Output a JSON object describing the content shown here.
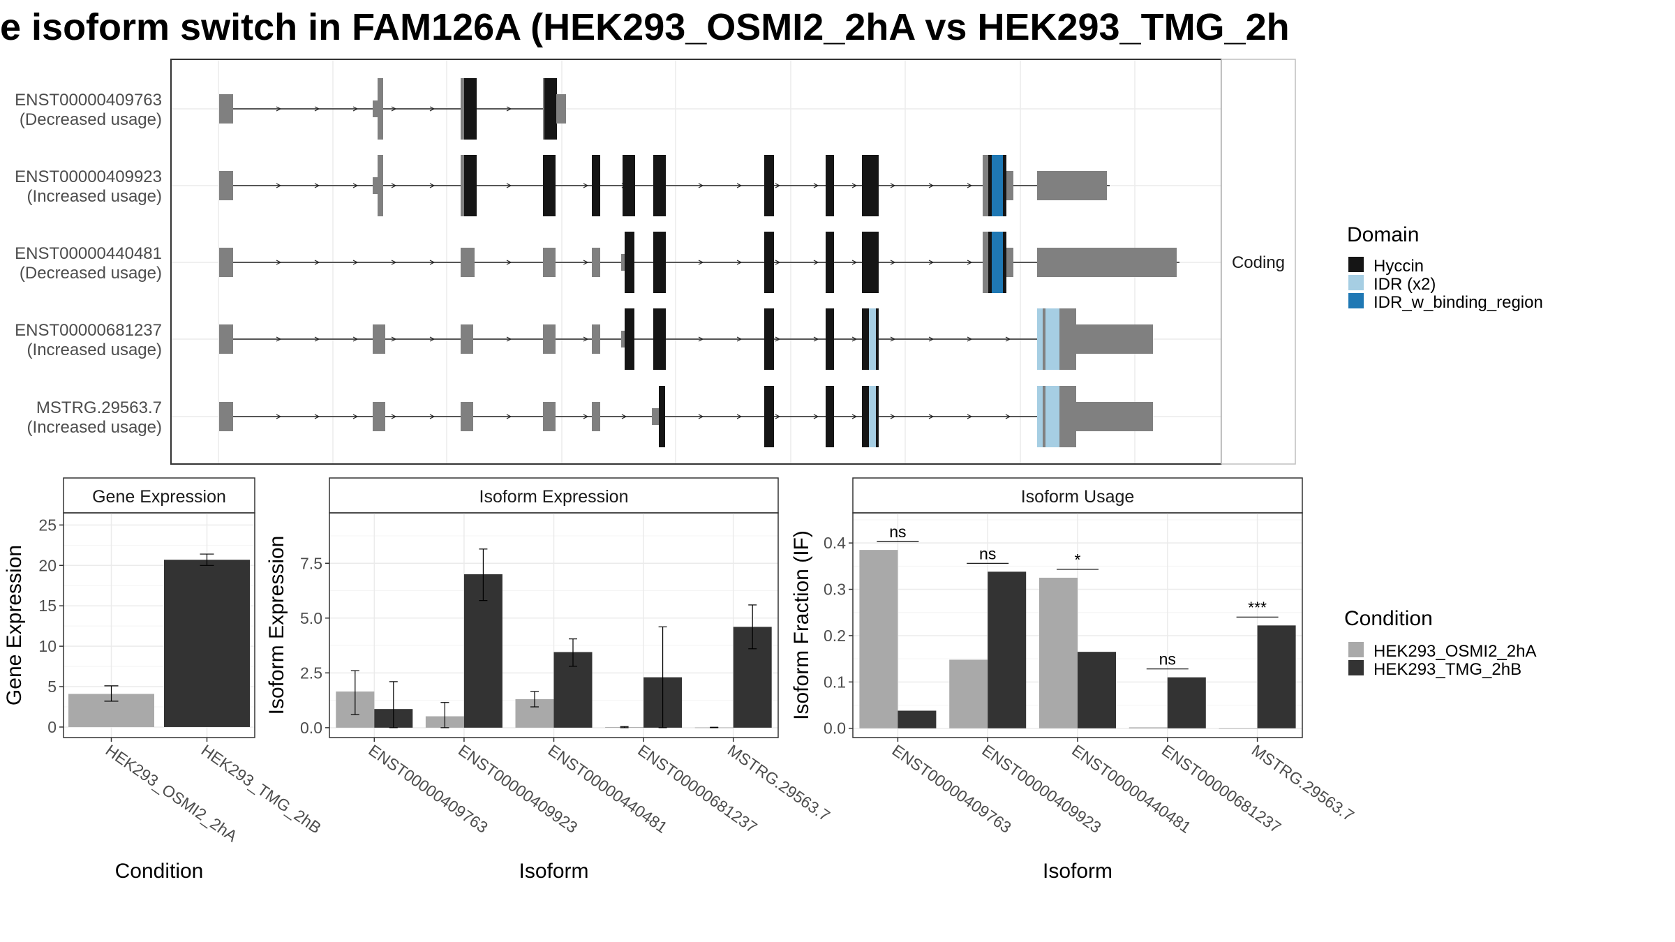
{
  "title": "e isoform switch in FAM126A (HEK293_OSMI2_2hA vs HEK293_TMG_2h",
  "colors": {
    "domain_hyccin": "#151515",
    "domain_idr": "#a6cee3",
    "domain_idr_binding": "#1f78b4",
    "utr_exon": "#808080",
    "cond_osmi": "#a9a9a9",
    "cond_tmg": "#333333"
  },
  "structure": {
    "facet_label": "Coding",
    "isoforms": [
      {
        "id": "ENST00000409763",
        "usage": "(Decreased usage)"
      },
      {
        "id": "ENST00000409923",
        "usage": "(Increased usage)"
      },
      {
        "id": "ENST00000440481",
        "usage": "(Decreased usage)"
      },
      {
        "id": "ENST00000681237",
        "usage": "(Increased usage)"
      },
      {
        "id": "MSTRG.29563.7",
        "usage": "(Increased usage)"
      }
    ],
    "legend": {
      "title": "Domain",
      "items": [
        "Hyccin",
        "IDR (x2)",
        "IDR_w_binding_region"
      ]
    }
  },
  "chart_data": [
    {
      "type": "bar",
      "facet_title": "Gene Expression",
      "xlabel": "Condition",
      "ylabel": "Gene Expression",
      "categories": [
        "HEK293_OSMI2_2hA",
        "HEK293_TMG_2hB"
      ],
      "values": [
        4.1,
        20.7
      ],
      "errors": [
        [
          3.2,
          5.1
        ],
        [
          20.0,
          21.4
        ]
      ],
      "ylim": [
        -1.3,
        26.5
      ],
      "yticks": [
        0,
        5,
        10,
        15,
        20,
        25
      ],
      "ytick_labels": [
        "0",
        "5",
        "10",
        "15",
        "20",
        "25"
      ]
    },
    {
      "type": "bar",
      "facet_title": "Isoform Expression",
      "xlabel": "Isoform",
      "ylabel": "Isoform Expression",
      "categories": [
        "ENST00000409763",
        "ENST00000409923",
        "ENST00000440481",
        "ENST00000681237",
        "MSTRG.29563.7"
      ],
      "series": [
        {
          "name": "HEK293_OSMI2_2hA",
          "values": [
            1.65,
            0.52,
            1.3,
            0.03,
            0.01
          ],
          "errors": [
            [
              0.6,
              2.6
            ],
            [
              0.0,
              1.15
            ],
            [
              0.95,
              1.65
            ],
            [
              0.0,
              0.05
            ],
            [
              0.0,
              0.02
            ]
          ]
        },
        {
          "name": "HEK293_TMG_2hB",
          "values": [
            0.85,
            7.0,
            3.45,
            2.3,
            4.6
          ],
          "errors": [
            [
              0.0,
              2.1
            ],
            [
              5.8,
              8.15
            ],
            [
              2.8,
              4.05
            ],
            [
              0.0,
              4.6
            ],
            [
              3.6,
              5.6
            ]
          ]
        }
      ],
      "ylim": [
        -0.45,
        9.8
      ],
      "yticks": [
        0,
        2.5,
        5,
        7.5
      ],
      "ytick_labels": [
        "0.0",
        "2.5",
        "5.0",
        "7.5"
      ]
    },
    {
      "type": "bar",
      "facet_title": "Isoform Usage",
      "xlabel": "Isoform",
      "ylabel": "Isoform Fraction (IF)",
      "categories": [
        "ENST00000409763",
        "ENST00000409923",
        "ENST00000440481",
        "ENST00000681237",
        "MSTRG.29563.7"
      ],
      "series": [
        {
          "name": "HEK293_OSMI2_2hA",
          "values": [
            0.385,
            0.148,
            0.325,
            0.002,
            0.0
          ]
        },
        {
          "name": "HEK293_TMG_2hB",
          "values": [
            0.038,
            0.338,
            0.165,
            0.11,
            0.222
          ]
        }
      ],
      "significance": [
        "ns",
        "ns",
        "*",
        "ns",
        "***"
      ],
      "ylim": [
        -0.02,
        0.465
      ],
      "yticks": [
        0,
        0.1,
        0.2,
        0.3,
        0.4
      ],
      "ytick_labels": [
        "0.0",
        "0.1",
        "0.2",
        "0.3",
        "0.4"
      ]
    }
  ],
  "condition_legend": {
    "title": "Condition",
    "items": [
      "HEK293_OSMI2_2hA",
      "HEK293_TMG_2hB"
    ]
  }
}
